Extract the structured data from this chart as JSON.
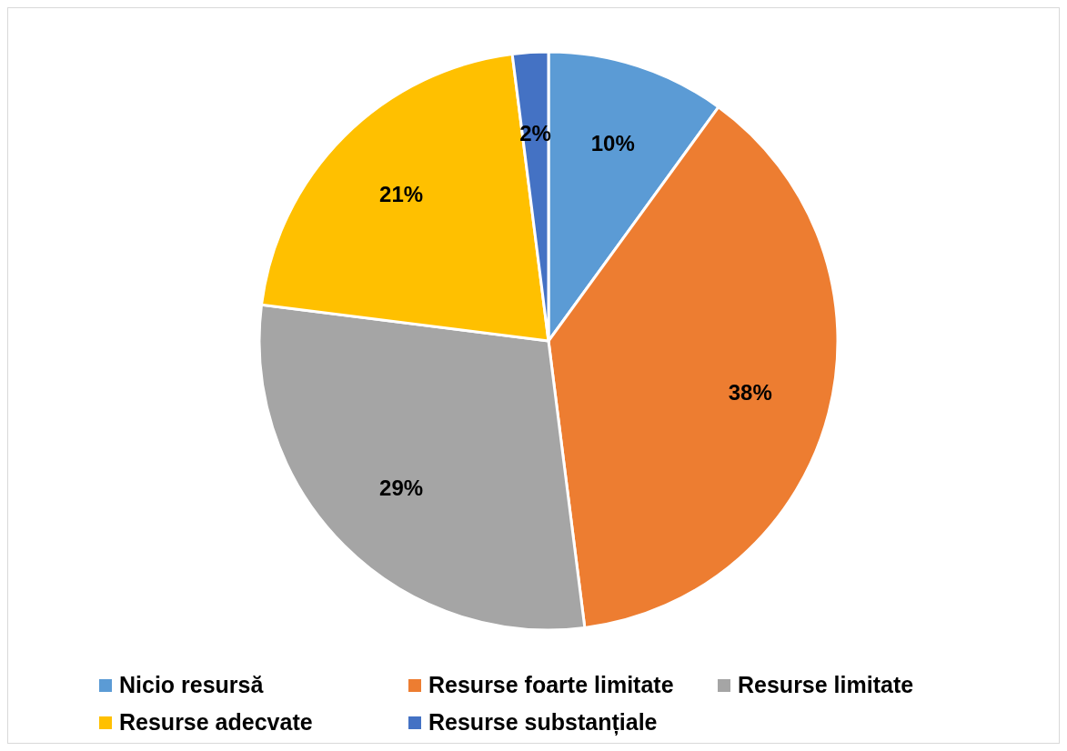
{
  "chart_data": {
    "type": "pie",
    "categories": [
      "Nicio resursă",
      "Resurse foarte limitate",
      "Resurse limitate",
      "Resurse adecvate",
      "Resurse substanțiale"
    ],
    "values": [
      10,
      38,
      29,
      21,
      2
    ],
    "colors": [
      "#5b9bd5",
      "#ed7d31",
      "#a5a5a5",
      "#ffc000",
      "#4472c4"
    ],
    "value_labels": [
      "10%",
      "38%",
      "29%",
      "21%",
      "2%"
    ],
    "legend": "bottom"
  }
}
